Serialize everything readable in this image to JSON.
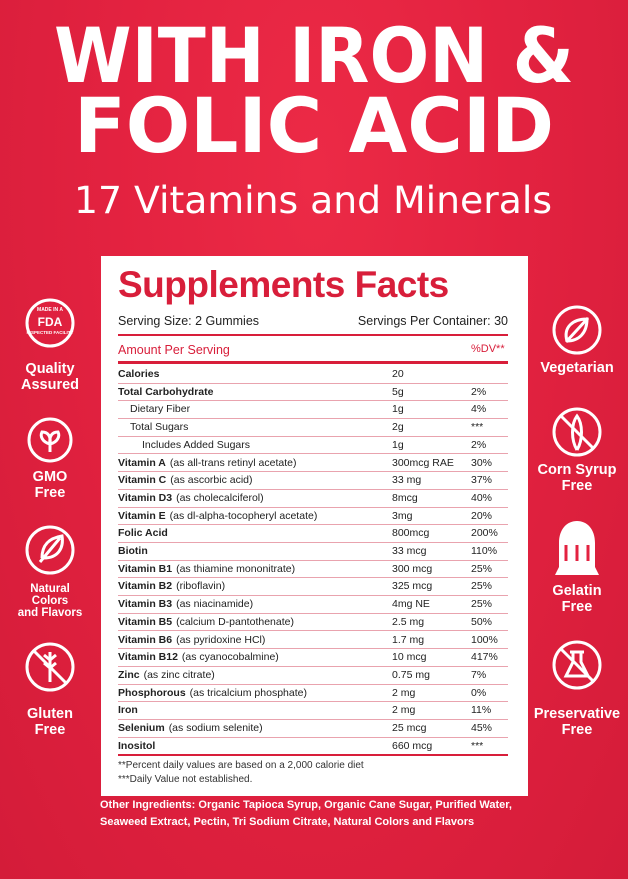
{
  "headline": {
    "lines": [
      "WITH IRON &",
      "FOLIC ACID"
    ],
    "subtitle": "17 Vitamins and Minerals"
  },
  "facts": {
    "title": "Supplements Facts",
    "serving_size": "Serving Size: 2 Gummies",
    "servings_per_container": "Servings Per Container: 30",
    "amount_header": "Amount Per Serving",
    "dv_header": "%DV**",
    "rows": [
      {
        "name": "Calories",
        "amount": "20"
      },
      {
        "name": "Total Carbohydrate",
        "amount": "5g",
        "dv": "2%"
      },
      {
        "name": "Dietary Fiber",
        "amount": "1g",
        "dv": "4%"
      },
      {
        "name": "Total Sugars",
        "amount": "2g",
        "dv": "***"
      },
      {
        "name": "Includes Added Sugars",
        "amount": "1g",
        "dv": "2%"
      },
      {
        "name": "Vitamin A",
        "note": "(as all-trans retinyl acetate)",
        "amount": "300mcg RAE",
        "dv": "30%"
      },
      {
        "name": "Vitamin C",
        "note": "(as ascorbic acid)",
        "amount": "33 mg",
        "dv": "37%"
      },
      {
        "name": "Vitamin D3",
        "note": "(as cholecalciferol)",
        "amount": "8mcg",
        "dv": "40%"
      },
      {
        "name": "Vitamin E",
        "note": "(as dl-alpha-tocopheryl acetate)",
        "amount": "3mg",
        "dv": "20%"
      },
      {
        "name": "Folic Acid",
        "amount": "800mcg",
        "dv": "200%"
      },
      {
        "name": "Biotin",
        "amount": "33 mcg",
        "dv": "110%"
      },
      {
        "name": "Vitamin B1",
        "note": "(as thiamine mononitrate)",
        "amount": "300 mcg",
        "dv": "25%"
      },
      {
        "name": "Vitamin B2",
        "note": "(riboflavin)",
        "amount": "325 mcg",
        "dv": "25%"
      },
      {
        "name": "Vitamin B3",
        "note": "(as niacinamide)",
        "amount": "4mg NE",
        "dv": "25%"
      },
      {
        "name": "Vitamin B5",
        "note": "(calcium D-pantothenate)",
        "amount": "2.5 mg",
        "dv": "50%"
      },
      {
        "name": "Vitamin B6",
        "note": "(as pyridoxine HCl)",
        "amount": "1.7 mg",
        "dv": "100%"
      },
      {
        "name": "Vitamin B12",
        "note": "(as cyanocobalmine)",
        "amount": "10 mcg",
        "dv": "417%"
      },
      {
        "name": "Zinc",
        "note": "(as zinc citrate)",
        "amount": "0.75 mg",
        "dv": "7%"
      },
      {
        "name": "Phosphorous",
        "note": "(as tricalcium phosphate)",
        "amount": "2 mg",
        "dv": "0%"
      },
      {
        "name": "Iron",
        "amount": "2 mg",
        "dv": "11%"
      },
      {
        "name": "Selenium",
        "note": "(as sodium selenite)",
        "amount": "25 mcg",
        "dv": "45%"
      },
      {
        "name": "Inositol",
        "amount": "660 mcg",
        "dv": "***"
      }
    ],
    "footnotes": [
      "**Percent daily values are based on a 2,000 calorie diet",
      "***Daily Value not established."
    ]
  },
  "other_ingredients": [
    "Other Ingredients: Organic Tapioca Syrup, Organic Cane Sugar, Purified Water,",
    "Seaweed Extract, Pectin, Tri Sodium Citrate, Natural Colors and Flavors"
  ],
  "badges_left": [
    {
      "lines": [
        "Quality",
        "Assured"
      ],
      "icon_text": [
        "MADE IN A",
        "FDA",
        "INSPECTED FACILITY"
      ]
    },
    {
      "lines": [
        "GMO",
        "Free"
      ]
    },
    {
      "lines": [
        "Natural",
        "Colors",
        "and Flavors"
      ]
    },
    {
      "lines": [
        "Gluten",
        "Free"
      ]
    }
  ],
  "badges_right": [
    {
      "lines": [
        "Vegetarian"
      ]
    },
    {
      "lines": [
        "Corn Syrup",
        "Free"
      ]
    },
    {
      "lines": [
        "Gelatin",
        "Free"
      ]
    },
    {
      "lines": [
        "Preservative",
        "Free"
      ]
    }
  ]
}
